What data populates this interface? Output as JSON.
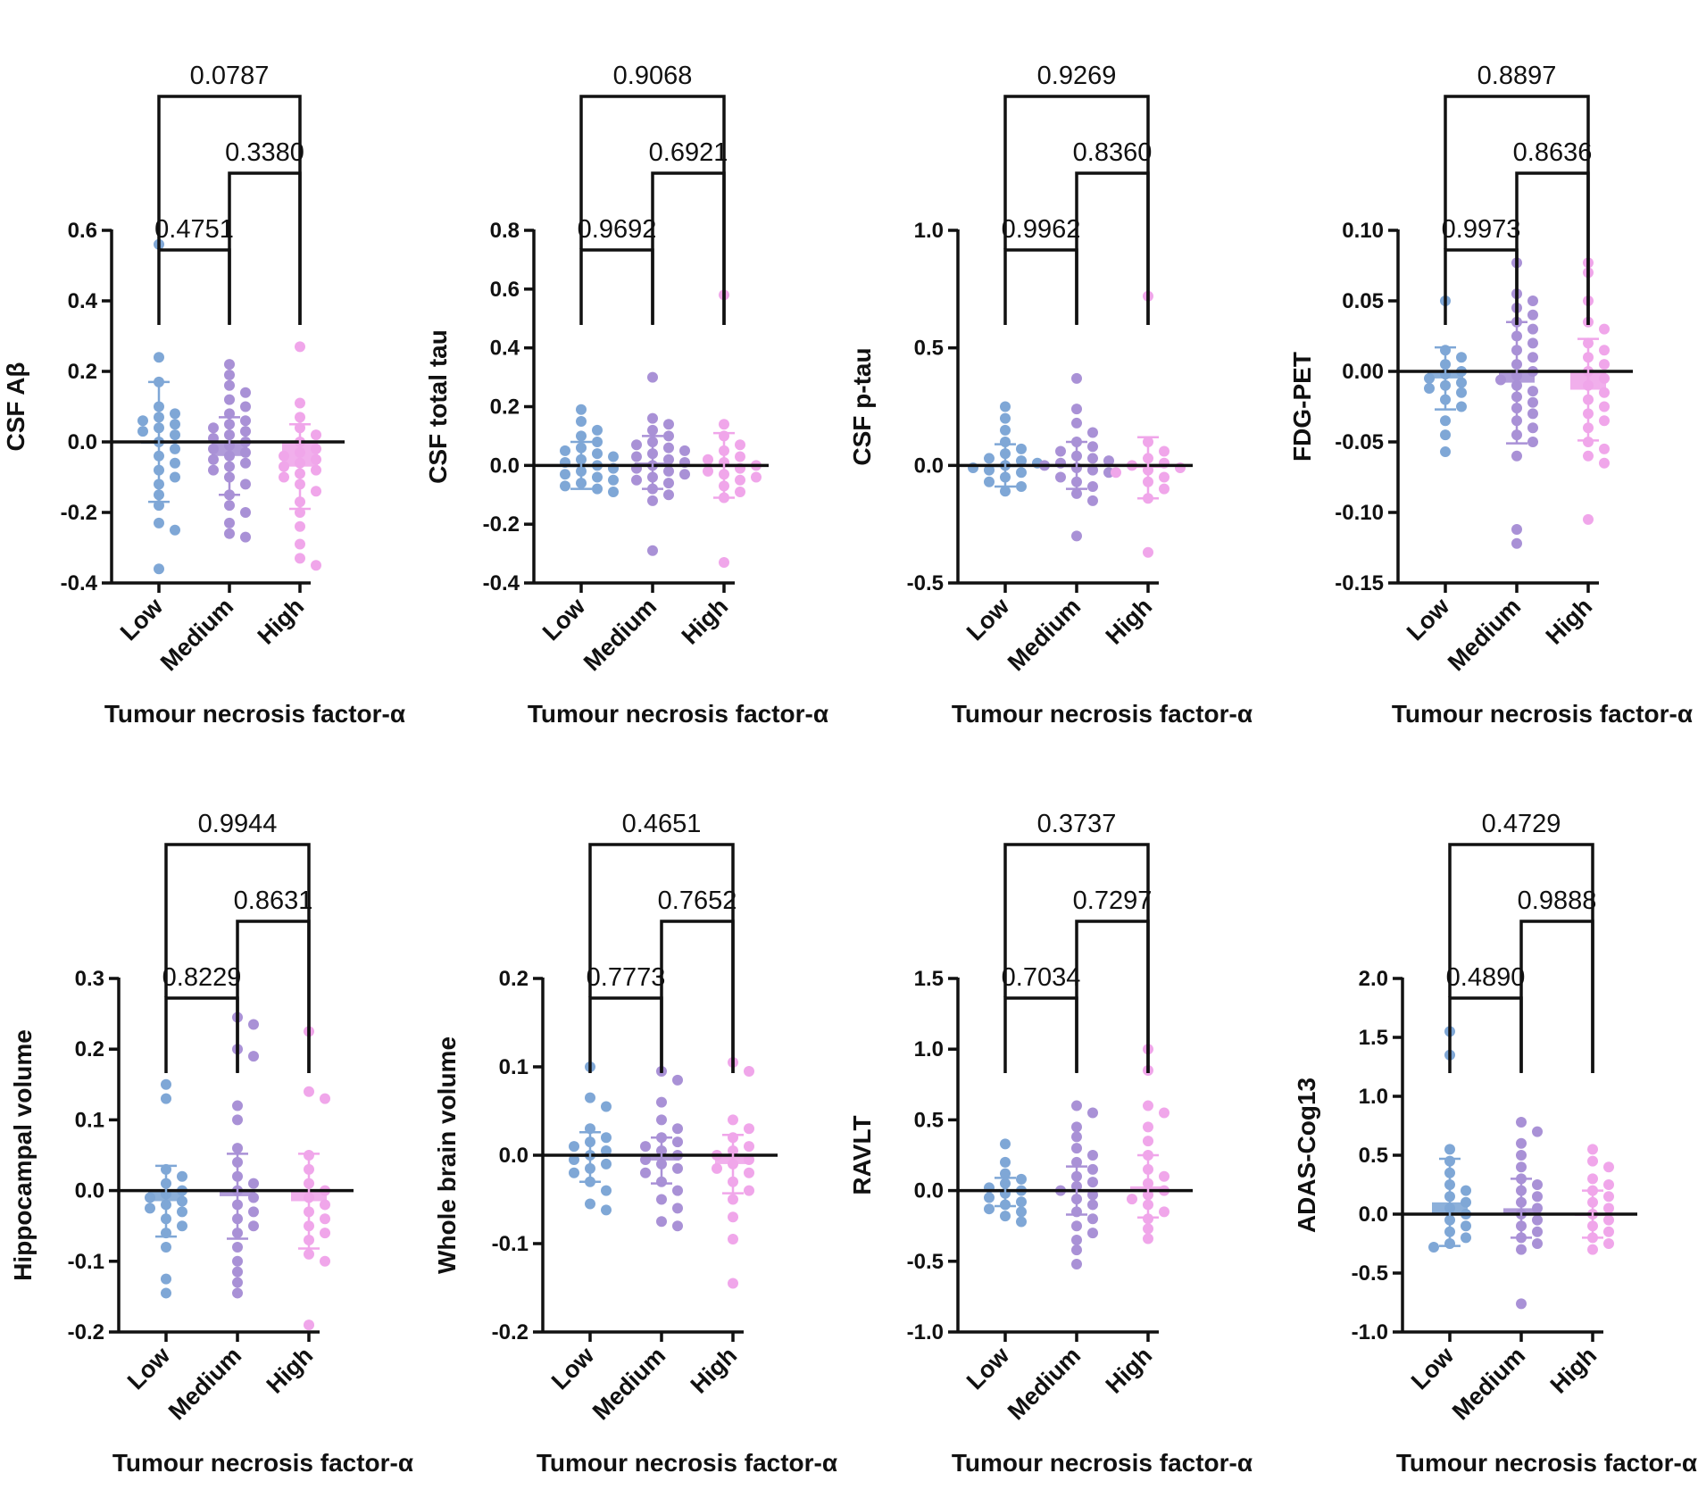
{
  "figure_colors": {
    "Low": "#7fa7d6",
    "Medium": "#a991d6",
    "High": "#f0a6ea",
    "axis": "#111111"
  },
  "chart_data": [
    {
      "type": "scatter",
      "title": "",
      "xlabel": "Tumour necrosis factor-α",
      "ylabel": "CSF Aβ",
      "categories": [
        "Low",
        "Medium",
        "High"
      ],
      "ylim": [
        -0.4,
        0.6
      ],
      "yticks": [
        -0.4,
        -0.2,
        0.0,
        0.2,
        0.4,
        0.6
      ],
      "ytick_labels": [
        "-0.4",
        "-0.2",
        "0.0",
        "0.2",
        "0.4",
        "0.6"
      ],
      "means": [
        0.0,
        -0.04,
        -0.07
      ],
      "sd": [
        0.17,
        0.11,
        0.12
      ],
      "series": [
        {
          "name": "Low",
          "values": [
            0.56,
            0.24,
            0.17,
            0.1,
            0.08,
            0.07,
            0.06,
            0.05,
            0.04,
            0.03,
            0.02,
            0.0,
            -0.02,
            -0.04,
            -0.06,
            -0.08,
            -0.1,
            -0.12,
            -0.15,
            -0.18,
            -0.23,
            -0.25,
            -0.36
          ]
        },
        {
          "name": "Medium",
          "values": [
            0.22,
            0.19,
            0.16,
            0.14,
            0.12,
            0.1,
            0.08,
            0.06,
            0.05,
            0.04,
            0.03,
            0.02,
            0.01,
            0.0,
            -0.01,
            -0.02,
            -0.03,
            -0.04,
            -0.05,
            -0.06,
            -0.07,
            -0.08,
            -0.1,
            -0.12,
            -0.15,
            -0.18,
            -0.2,
            -0.23,
            -0.26,
            -0.27
          ]
        },
        {
          "name": "High",
          "values": [
            0.27,
            0.11,
            0.07,
            0.04,
            0.02,
            0.0,
            -0.02,
            -0.03,
            -0.04,
            -0.05,
            -0.06,
            -0.07,
            -0.08,
            -0.09,
            -0.1,
            -0.12,
            -0.14,
            -0.17,
            -0.2,
            -0.24,
            -0.29,
            -0.33,
            -0.35
          ]
        }
      ],
      "comparisons": [
        {
          "pair": [
            "Low",
            "Medium"
          ],
          "p": "0.4751",
          "level": 0
        },
        {
          "pair": [
            "Medium",
            "High"
          ],
          "p": "0.3380",
          "level": 1
        },
        {
          "pair": [
            "Low",
            "High"
          ],
          "p": "0.0787",
          "level": 2
        }
      ]
    },
    {
      "type": "scatter",
      "title": "",
      "xlabel": "Tumour necrosis factor-α",
      "ylabel": "CSF total tau",
      "categories": [
        "Low",
        "Medium",
        "High"
      ],
      "ylim": [
        -0.4,
        0.8
      ],
      "yticks": [
        -0.4,
        -0.2,
        0.0,
        0.2,
        0.4,
        0.6,
        0.8
      ],
      "ytick_labels": [
        "-0.4",
        "-0.2",
        "0.0",
        "0.2",
        "0.4",
        "0.6",
        "0.8"
      ],
      "means": [
        0.0,
        0.01,
        0.0
      ],
      "sd": [
        0.08,
        0.09,
        0.11
      ],
      "series": [
        {
          "name": "Low",
          "values": [
            0.19,
            0.15,
            0.12,
            0.1,
            0.08,
            0.06,
            0.05,
            0.04,
            0.03,
            0.02,
            0.01,
            0.0,
            -0.01,
            -0.02,
            -0.03,
            -0.04,
            -0.05,
            -0.06,
            -0.07,
            -0.08,
            -0.09
          ]
        },
        {
          "name": "Medium",
          "values": [
            0.3,
            0.16,
            0.14,
            0.12,
            0.1,
            0.08,
            0.07,
            0.06,
            0.05,
            0.04,
            0.03,
            0.02,
            0.01,
            0.0,
            -0.01,
            -0.02,
            -0.03,
            -0.04,
            -0.05,
            -0.06,
            -0.08,
            -0.1,
            -0.12,
            -0.29
          ]
        },
        {
          "name": "High",
          "values": [
            0.58,
            0.14,
            0.1,
            0.07,
            0.05,
            0.03,
            0.02,
            0.01,
            0.0,
            -0.01,
            -0.02,
            -0.03,
            -0.04,
            -0.05,
            -0.07,
            -0.09,
            -0.11,
            -0.33
          ]
        }
      ],
      "comparisons": [
        {
          "pair": [
            "Low",
            "Medium"
          ],
          "p": "0.9692",
          "level": 0
        },
        {
          "pair": [
            "Medium",
            "High"
          ],
          "p": "0.6921",
          "level": 1
        },
        {
          "pair": [
            "Low",
            "High"
          ],
          "p": "0.9068",
          "level": 2
        }
      ]
    },
    {
      "type": "scatter",
      "title": "",
      "xlabel": "Tumour necrosis factor-α",
      "ylabel": "CSF p-tau",
      "categories": [
        "Low",
        "Medium",
        "High"
      ],
      "ylim": [
        -0.5,
        1.0
      ],
      "yticks": [
        -0.5,
        0.0,
        0.5,
        1.0
      ],
      "ytick_labels": [
        "-0.5",
        "0.0",
        "0.5",
        "1.0"
      ],
      "means": [
        0.0,
        0.0,
        -0.01
      ],
      "sd": [
        0.09,
        0.1,
        0.13
      ],
      "series": [
        {
          "name": "Low",
          "values": [
            0.25,
            0.2,
            0.15,
            0.1,
            0.07,
            0.05,
            0.03,
            0.02,
            0.01,
            0.0,
            -0.01,
            -0.02,
            -0.03,
            -0.05,
            -0.07,
            -0.09,
            -0.11
          ]
        },
        {
          "name": "Medium",
          "values": [
            0.37,
            0.24,
            0.18,
            0.14,
            0.1,
            0.08,
            0.06,
            0.04,
            0.03,
            0.02,
            0.01,
            0.0,
            -0.01,
            -0.02,
            -0.03,
            -0.05,
            -0.07,
            -0.09,
            -0.12,
            -0.15,
            -0.3
          ]
        },
        {
          "name": "High",
          "values": [
            0.72,
            0.1,
            0.06,
            0.03,
            0.01,
            0.0,
            -0.01,
            -0.02,
            -0.03,
            -0.05,
            -0.07,
            -0.1,
            -0.14,
            -0.37
          ]
        }
      ],
      "comparisons": [
        {
          "pair": [
            "Low",
            "Medium"
          ],
          "p": "0.9962",
          "level": 0
        },
        {
          "pair": [
            "Medium",
            "High"
          ],
          "p": "0.8360",
          "level": 1
        },
        {
          "pair": [
            "Low",
            "High"
          ],
          "p": "0.9269",
          "level": 2
        }
      ]
    },
    {
      "type": "scatter",
      "title": "",
      "xlabel": "Tumour necrosis factor-α",
      "ylabel": "FDG-PET",
      "categories": [
        "Low",
        "Medium",
        "High"
      ],
      "ylim": [
        -0.15,
        0.1
      ],
      "yticks": [
        -0.15,
        -0.1,
        -0.05,
        0.0,
        0.05,
        0.1
      ],
      "ytick_labels": [
        "-0.15",
        "-0.10",
        "-0.05",
        "0.00",
        "0.05",
        "0.10"
      ],
      "means": [
        -0.005,
        -0.008,
        -0.013
      ],
      "sd": [
        0.022,
        0.043,
        0.036
      ],
      "series": [
        {
          "name": "Low",
          "values": [
            0.05,
            0.015,
            0.01,
            0.005,
            0.0,
            -0.002,
            -0.005,
            -0.008,
            -0.01,
            -0.012,
            -0.015,
            -0.02,
            -0.025,
            -0.035,
            -0.045,
            -0.057
          ]
        },
        {
          "name": "Medium",
          "values": [
            0.077,
            0.055,
            0.05,
            0.045,
            0.04,
            0.035,
            0.03,
            0.025,
            0.02,
            0.015,
            0.01,
            0.005,
            0.0,
            -0.003,
            -0.006,
            -0.01,
            -0.014,
            -0.018,
            -0.022,
            -0.026,
            -0.03,
            -0.035,
            -0.04,
            -0.045,
            -0.05,
            -0.06,
            -0.112,
            -0.122
          ]
        },
        {
          "name": "High",
          "values": [
            0.077,
            0.07,
            0.05,
            0.035,
            0.03,
            0.02,
            0.015,
            0.01,
            0.005,
            0.0,
            -0.005,
            -0.01,
            -0.015,
            -0.02,
            -0.025,
            -0.03,
            -0.035,
            -0.04,
            -0.05,
            -0.055,
            -0.06,
            -0.065,
            -0.105
          ]
        }
      ],
      "comparisons": [
        {
          "pair": [
            "Low",
            "Medium"
          ],
          "p": "0.9973",
          "level": 0
        },
        {
          "pair": [
            "Medium",
            "High"
          ],
          "p": "0.8636",
          "level": 1
        },
        {
          "pair": [
            "Low",
            "High"
          ],
          "p": "0.8897",
          "level": 2
        }
      ]
    },
    {
      "type": "scatter",
      "title": "",
      "xlabel": "Tumour necrosis factor-α",
      "ylabel": "Hippocampal volume",
      "categories": [
        "Low",
        "Medium",
        "High"
      ],
      "ylim": [
        -0.2,
        0.3
      ],
      "yticks": [
        -0.2,
        -0.1,
        0.0,
        0.1,
        0.2,
        0.3
      ],
      "ytick_labels": [
        "-0.2",
        "-0.1",
        "0.0",
        "0.1",
        "0.2",
        "0.3"
      ],
      "means": [
        -0.015,
        -0.008,
        -0.015
      ],
      "sd": [
        0.05,
        0.06,
        0.067
      ],
      "series": [
        {
          "name": "Low",
          "values": [
            0.15,
            0.13,
            0.03,
            0.02,
            0.01,
            0.0,
            -0.005,
            -0.01,
            -0.015,
            -0.02,
            -0.025,
            -0.03,
            -0.04,
            -0.05,
            -0.06,
            -0.08,
            -0.125,
            -0.145
          ]
        },
        {
          "name": "Medium",
          "values": [
            0.245,
            0.235,
            0.2,
            0.19,
            0.12,
            0.1,
            0.06,
            0.04,
            0.02,
            0.01,
            0.0,
            -0.01,
            -0.02,
            -0.03,
            -0.04,
            -0.05,
            -0.06,
            -0.08,
            -0.1,
            -0.115,
            -0.13,
            -0.145
          ]
        },
        {
          "name": "High",
          "values": [
            0.225,
            0.14,
            0.13,
            0.05,
            0.03,
            0.01,
            0.0,
            -0.01,
            -0.02,
            -0.03,
            -0.04,
            -0.05,
            -0.06,
            -0.07,
            -0.09,
            -0.1,
            -0.19
          ]
        }
      ],
      "comparisons": [
        {
          "pair": [
            "Low",
            "Medium"
          ],
          "p": "0.8229",
          "level": 0
        },
        {
          "pair": [
            "Medium",
            "High"
          ],
          "p": "0.8631",
          "level": 1
        },
        {
          "pair": [
            "Low",
            "High"
          ],
          "p": "0.9944",
          "level": 2
        }
      ]
    },
    {
      "type": "scatter",
      "title": "",
      "xlabel": "Tumour necrosis factor-α",
      "ylabel": "Whole brain volume",
      "categories": [
        "Low",
        "Medium",
        "High"
      ],
      "ylim": [
        -0.2,
        0.2
      ],
      "yticks": [
        -0.2,
        -0.1,
        0.0,
        0.1,
        0.2
      ],
      "ytick_labels": [
        "-0.2",
        "-0.1",
        "0.0",
        "0.1",
        "0.2"
      ],
      "means": [
        -0.002,
        -0.006,
        -0.01
      ],
      "sd": [
        0.028,
        0.026,
        0.033
      ],
      "series": [
        {
          "name": "Low",
          "values": [
            0.1,
            0.065,
            0.055,
            0.03,
            0.02,
            0.015,
            0.01,
            0.005,
            0.0,
            -0.005,
            -0.01,
            -0.015,
            -0.02,
            -0.03,
            -0.04,
            -0.055,
            -0.062
          ]
        },
        {
          "name": "Medium",
          "values": [
            0.095,
            0.085,
            0.06,
            0.04,
            0.03,
            0.02,
            0.015,
            0.01,
            0.005,
            0.0,
            -0.005,
            -0.01,
            -0.015,
            -0.02,
            -0.03,
            -0.04,
            -0.05,
            -0.06,
            -0.075,
            -0.08
          ]
        },
        {
          "name": "High",
          "values": [
            0.105,
            0.095,
            0.04,
            0.03,
            0.02,
            0.01,
            0.005,
            0.0,
            -0.005,
            -0.01,
            -0.015,
            -0.02,
            -0.03,
            -0.04,
            -0.05,
            -0.07,
            -0.095,
            -0.145
          ]
        }
      ],
      "comparisons": [
        {
          "pair": [
            "Low",
            "Medium"
          ],
          "p": "0.7773",
          "level": 0
        },
        {
          "pair": [
            "Medium",
            "High"
          ],
          "p": "0.7652",
          "level": 1
        },
        {
          "pair": [
            "Low",
            "High"
          ],
          "p": "0.4651",
          "level": 2
        }
      ]
    },
    {
      "type": "scatter",
      "title": "",
      "xlabel": "Tumour necrosis factor-α",
      "ylabel": "RAVLT",
      "categories": [
        "Low",
        "Medium",
        "High"
      ],
      "ylim": [
        -1.0,
        1.5
      ],
      "yticks": [
        -1.0,
        -0.5,
        0.0,
        0.5,
        1.0,
        1.5
      ],
      "ytick_labels": [
        "-1.0",
        "-0.5",
        "0.0",
        "0.5",
        "1.0",
        "1.5"
      ],
      "means": [
        -0.01,
        0.0,
        0.03
      ],
      "sd": [
        0.1,
        0.17,
        0.22
      ],
      "series": [
        {
          "name": "Low",
          "values": [
            0.33,
            0.2,
            0.12,
            0.08,
            0.05,
            0.02,
            0.0,
            -0.02,
            -0.05,
            -0.08,
            -0.1,
            -0.13,
            -0.15,
            -0.18,
            -0.22
          ]
        },
        {
          "name": "Medium",
          "values": [
            0.6,
            0.55,
            0.45,
            0.38,
            0.3,
            0.25,
            0.2,
            0.15,
            0.1,
            0.06,
            0.03,
            0.0,
            -0.03,
            -0.06,
            -0.1,
            -0.15,
            -0.2,
            -0.25,
            -0.3,
            -0.35,
            -0.42,
            -0.52
          ]
        },
        {
          "name": "High",
          "values": [
            1.0,
            0.85,
            0.6,
            0.55,
            0.45,
            0.35,
            0.25,
            0.15,
            0.1,
            0.05,
            0.0,
            -0.03,
            -0.06,
            -0.1,
            -0.15,
            -0.2,
            -0.27,
            -0.34
          ]
        }
      ],
      "comparisons": [
        {
          "pair": [
            "Low",
            "Medium"
          ],
          "p": "0.7034",
          "level": 0
        },
        {
          "pair": [
            "Medium",
            "High"
          ],
          "p": "0.7297",
          "level": 1
        },
        {
          "pair": [
            "Low",
            "High"
          ],
          "p": "0.3737",
          "level": 2
        }
      ]
    },
    {
      "type": "scatter",
      "title": "",
      "xlabel": "Tumour necrosis factor-α",
      "ylabel": "ADAS-Cog13",
      "categories": [
        "Low",
        "Medium",
        "High"
      ],
      "ylim": [
        -1.0,
        2.0
      ],
      "yticks": [
        -1.0,
        -0.5,
        0.0,
        0.5,
        1.0,
        1.5,
        2.0
      ],
      "ytick_labels": [
        "-1.0",
        "-0.5",
        "0.0",
        "0.5",
        "1.0",
        "1.5",
        "2.0"
      ],
      "means": [
        0.1,
        0.05,
        0.0
      ],
      "sd": [
        0.37,
        0.25,
        0.2
      ],
      "series": [
        {
          "name": "Low",
          "values": [
            1.55,
            1.35,
            0.55,
            0.45,
            0.35,
            0.25,
            0.2,
            0.15,
            0.1,
            0.05,
            0.0,
            -0.05,
            -0.1,
            -0.15,
            -0.2,
            -0.25,
            -0.28
          ]
        },
        {
          "name": "Medium",
          "values": [
            0.78,
            0.7,
            0.6,
            0.5,
            0.4,
            0.3,
            0.25,
            0.2,
            0.15,
            0.1,
            0.05,
            0.0,
            -0.05,
            -0.1,
            -0.15,
            -0.2,
            -0.25,
            -0.3,
            -0.76
          ]
        },
        {
          "name": "High",
          "values": [
            0.55,
            0.45,
            0.4,
            0.3,
            0.25,
            0.2,
            0.15,
            0.1,
            0.05,
            0.0,
            -0.05,
            -0.1,
            -0.15,
            -0.2,
            -0.25,
            -0.3
          ]
        }
      ],
      "comparisons": [
        {
          "pair": [
            "Low",
            "Medium"
          ],
          "p": "0.4890",
          "level": 0
        },
        {
          "pair": [
            "Medium",
            "High"
          ],
          "p": "0.9888",
          "level": 1
        },
        {
          "pair": [
            "Low",
            "High"
          ],
          "p": "0.4729",
          "level": 2
        }
      ]
    }
  ]
}
